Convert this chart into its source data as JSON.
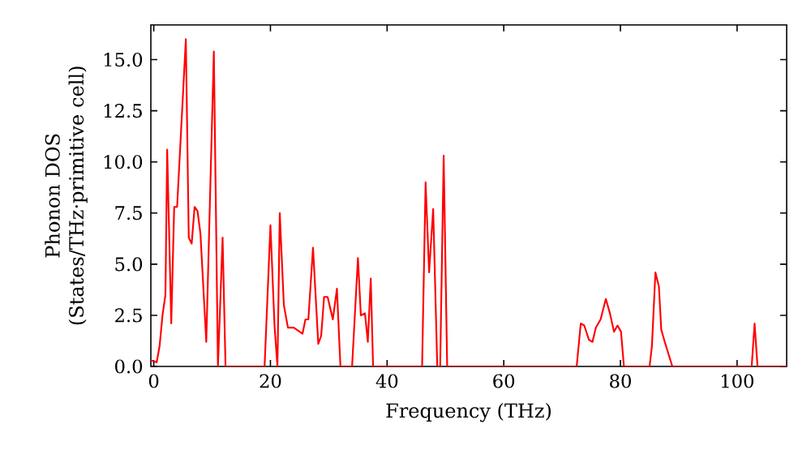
{
  "chart_data": {
    "type": "line",
    "xlabel": "Frequency (THz)",
    "ylabel": "Phonon DOS (States/THz·primitive cell)",
    "xlim": [
      -0.5,
      108.5
    ],
    "ylim": [
      0,
      16.7
    ],
    "xticks": [
      0,
      20,
      40,
      60,
      80,
      100
    ],
    "yticks": [
      {
        "value": 0,
        "label": "0.0"
      },
      {
        "value": 2.5,
        "label": "2.5"
      },
      {
        "value": 5,
        "label": "5.0"
      },
      {
        "value": 7.5,
        "label": "7.5"
      },
      {
        "value": 10,
        "label": "10.0"
      },
      {
        "value": 12.5,
        "label": "12.5"
      },
      {
        "value": 15,
        "label": "15.0"
      }
    ],
    "marker": "none",
    "line_style": "solid",
    "series": [
      {
        "color": "#ff0000",
        "x": [
          -0.5,
          0.5,
          1,
          1.5,
          2,
          2.3,
          3.0,
          3.5,
          4,
          5.5,
          6,
          6.5,
          7,
          7.5,
          8,
          9,
          10.3,
          11,
          11.8,
          12.3,
          19,
          20,
          20.7,
          21.2,
          21.6,
          22.3,
          23,
          24,
          25.5,
          26,
          26.5,
          27.3,
          28.2,
          28.7,
          29.2,
          29.8,
          30.7,
          31.4,
          32,
          34,
          35,
          35.5,
          36.2,
          36.7,
          37.2,
          37.6,
          46,
          46.6,
          47.2,
          47.9,
          48.6,
          49.1,
          49.7,
          50.3,
          72.5,
          73.2,
          73.8,
          74.6,
          75.2,
          75.8,
          76.6,
          77.5,
          78.2,
          78.9,
          79.5,
          80.1,
          80.6,
          85,
          85.4,
          86,
          86.6,
          87,
          87.6,
          88.9,
          102.5,
          103,
          103.5,
          108.5
        ],
        "values": [
          0.3,
          0.2,
          1,
          2.5,
          3.5,
          10.6,
          2.1,
          7.8,
          7.8,
          16.0,
          6.3,
          6.0,
          7.8,
          7.6,
          6.5,
          1.2,
          15.4,
          0,
          6.3,
          0,
          0,
          6.9,
          2,
          0,
          7.5,
          3,
          1.9,
          1.9,
          1.6,
          2.3,
          2.3,
          5.8,
          1.1,
          1.5,
          3.4,
          3.4,
          2.3,
          3.8,
          0,
          0,
          5.3,
          2.5,
          2.6,
          1.2,
          4.3,
          0,
          0,
          9.0,
          4.6,
          7.7,
          0,
          0,
          10.3,
          0,
          0,
          2.1,
          2.0,
          1.3,
          1.2,
          1.9,
          2.3,
          3.3,
          2.6,
          1.7,
          2.0,
          1.7,
          0,
          0,
          1.0,
          4.6,
          3.9,
          1.8,
          1.2,
          0,
          0,
          2.1,
          0,
          0
        ]
      }
    ]
  }
}
